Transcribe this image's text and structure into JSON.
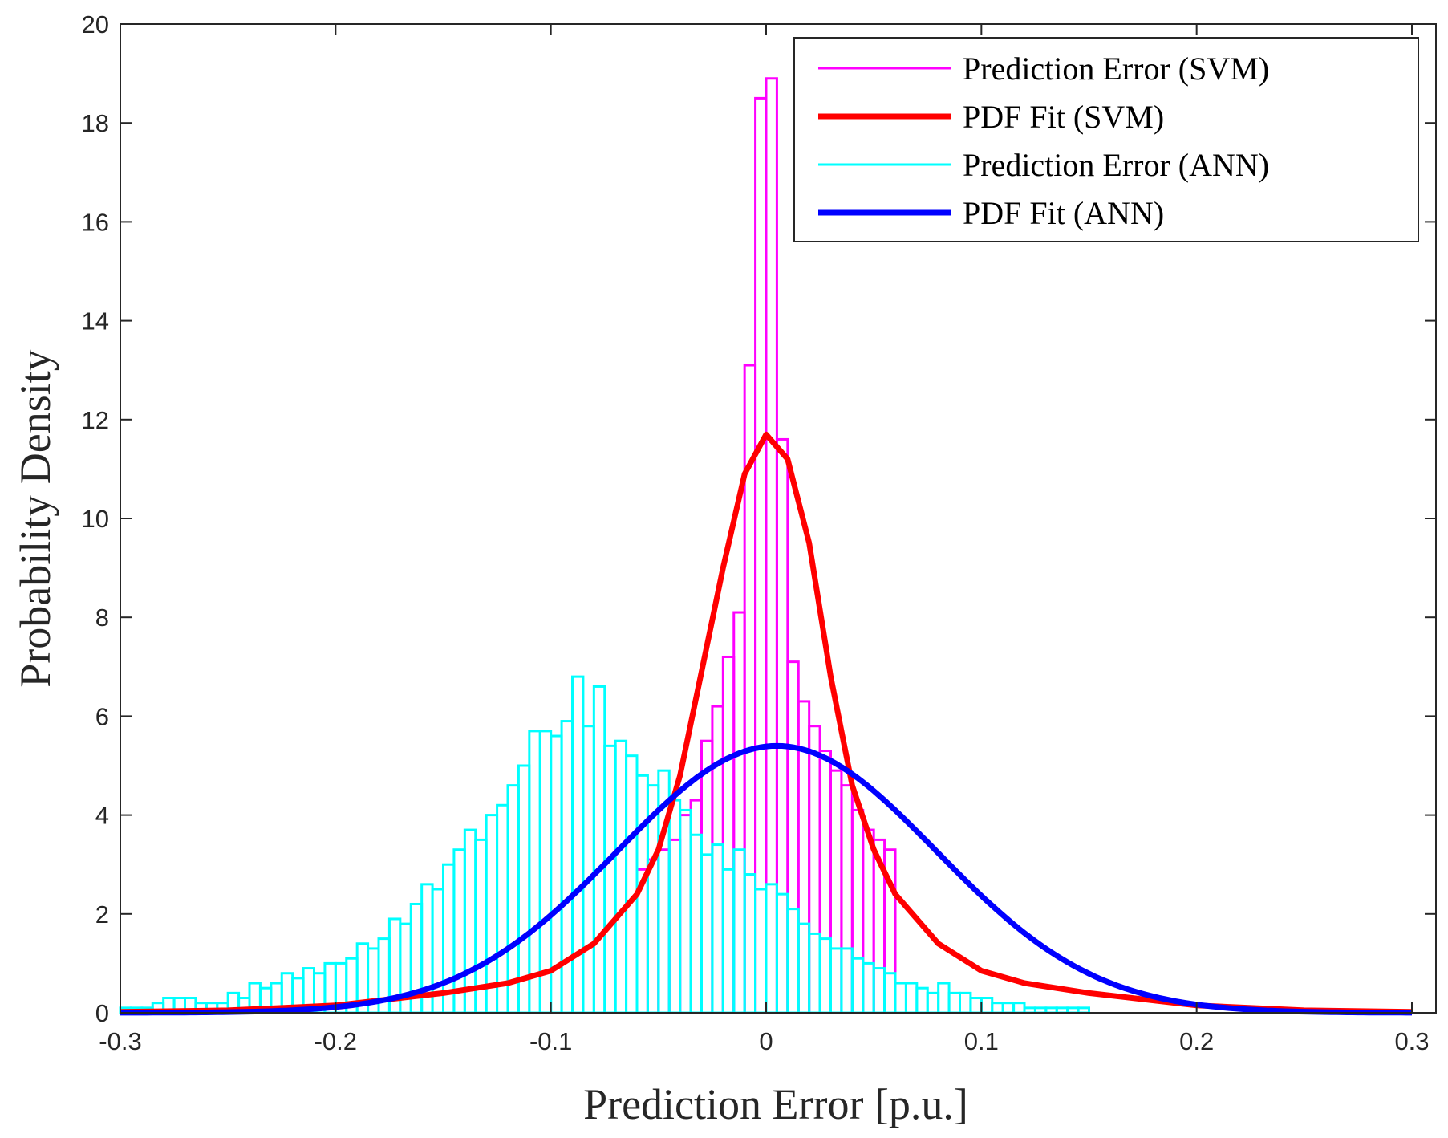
{
  "chart_data": {
    "type": "bar",
    "title": "",
    "xlabel": "Prediction Error [p.u.]",
    "ylabel": "Probability Density",
    "xlim": [
      -0.3,
      0.3
    ],
    "ylim": [
      0,
      20
    ],
    "xticks": [
      -0.3,
      -0.2,
      -0.1,
      0,
      0.1,
      0.2,
      0.3
    ],
    "xtick_labels": [
      "-0.3",
      "-0.2",
      "-0.1",
      "0",
      "0.1",
      "0.2",
      "0.3"
    ],
    "yticks": [
      0,
      2,
      4,
      6,
      8,
      10,
      12,
      14,
      16,
      18,
      20
    ],
    "ytick_labels": [
      "0",
      "2",
      "4",
      "6",
      "8",
      "10",
      "12",
      "14",
      "16",
      "18",
      "20"
    ],
    "grid": false,
    "legend_position": "top-right",
    "series": [
      {
        "name": "Prediction Error (SVM)",
        "kind": "histogram",
        "color": "#ff00ff",
        "bin_edges": [
          -0.06,
          -0.055,
          -0.05,
          -0.045,
          -0.04,
          -0.035,
          -0.03,
          -0.025,
          -0.02,
          -0.015,
          -0.01,
          -0.005,
          0.0,
          0.005,
          0.01,
          0.015,
          0.02,
          0.025,
          0.03,
          0.035,
          0.04,
          0.045,
          0.05,
          0.055,
          0.06
        ],
        "values": [
          2.9,
          3.1,
          3.3,
          3.5,
          4.0,
          4.3,
          5.5,
          6.2,
          7.2,
          8.1,
          13.1,
          18.5,
          18.9,
          11.6,
          7.1,
          6.3,
          5.8,
          5.3,
          4.9,
          4.6,
          4.1,
          3.7,
          3.5,
          3.3
        ]
      },
      {
        "name": "PDF Fit (SVM)",
        "kind": "line",
        "color": "#ff0000",
        "x": [
          -0.3,
          -0.25,
          -0.2,
          -0.18,
          -0.15,
          -0.12,
          -0.1,
          -0.08,
          -0.06,
          -0.05,
          -0.04,
          -0.03,
          -0.02,
          -0.01,
          0.0,
          0.01,
          0.02,
          0.03,
          0.04,
          0.05,
          0.06,
          0.08,
          0.1,
          0.12,
          0.15,
          0.18,
          0.2,
          0.25,
          0.3
        ],
        "y": [
          0.02,
          0.05,
          0.15,
          0.25,
          0.4,
          0.6,
          0.85,
          1.4,
          2.4,
          3.3,
          4.8,
          6.9,
          9.0,
          10.9,
          11.7,
          11.2,
          9.5,
          6.8,
          4.6,
          3.3,
          2.4,
          1.4,
          0.85,
          0.6,
          0.4,
          0.25,
          0.15,
          0.05,
          0.02
        ]
      },
      {
        "name": "Prediction Error (ANN)",
        "kind": "histogram",
        "color": "#00ffff",
        "bin_width": 0.005,
        "values": [
          0.1,
          0.1,
          0.1,
          0.2,
          0.3,
          0.3,
          0.3,
          0.2,
          0.2,
          0.2,
          0.4,
          0.3,
          0.6,
          0.5,
          0.6,
          0.8,
          0.7,
          0.9,
          0.8,
          1.0,
          1.0,
          1.1,
          1.4,
          1.3,
          1.5,
          1.9,
          1.8,
          2.2,
          2.6,
          2.5,
          3.0,
          3.3,
          3.7,
          3.5,
          4.0,
          4.2,
          4.6,
          5.0,
          5.7,
          5.7,
          5.6,
          5.9,
          6.8,
          5.8,
          6.6,
          5.4,
          5.5,
          5.2,
          4.8,
          4.6,
          4.9,
          4.3,
          4.1,
          3.6,
          3.2,
          3.4,
          2.9,
          3.3,
          2.8,
          2.5,
          2.6,
          2.4,
          2.1,
          1.8,
          1.6,
          1.5,
          1.3,
          1.3,
          1.1,
          1.0,
          0.9,
          0.8,
          0.6,
          0.6,
          0.5,
          0.4,
          0.6,
          0.4,
          0.4,
          0.3,
          0.3,
          0.2,
          0.2,
          0.2,
          0.1,
          0.1,
          0.1,
          0.1,
          0.1,
          0.1
        ]
      },
      {
        "name": "PDF Fit (ANN)",
        "kind": "line",
        "color": "#0000ff",
        "mean": 0.005,
        "std": 0.074,
        "peak": 5.4,
        "x": [
          -0.3,
          -0.25,
          -0.2,
          -0.15,
          -0.1,
          -0.05,
          0.0,
          0.005,
          0.05,
          0.1,
          0.15,
          0.2,
          0.25,
          0.3
        ],
        "y": [
          0.0,
          0.1,
          0.3,
          0.8,
          1.8,
          3.6,
          5.38,
          5.4,
          4.5,
          2.3,
          0.86,
          0.28,
          0.08,
          0.0
        ]
      }
    ]
  }
}
